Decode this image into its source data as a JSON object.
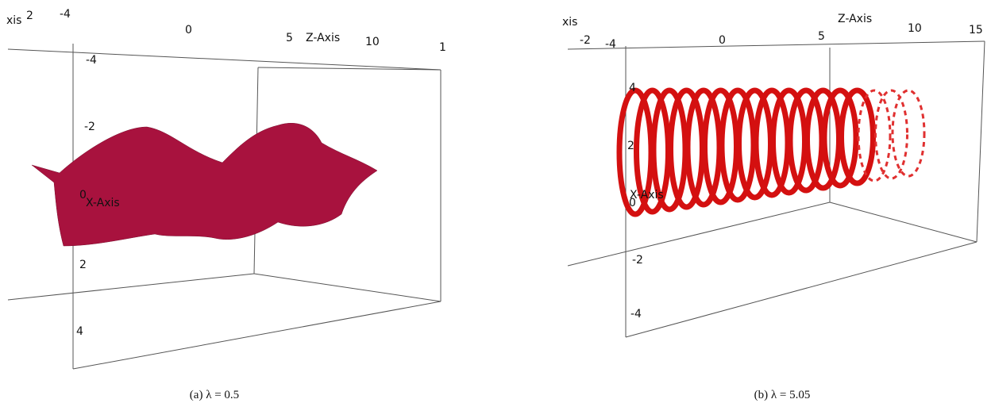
{
  "panels": [
    {
      "labels": [
        "xis",
        "2",
        "-4",
        "0",
        "5",
        "Z-Axis",
        "10",
        "1",
        "-4",
        "-2",
        "0",
        "X-Axis",
        "2",
        "4"
      ],
      "caption": "(a) λ = 0.5"
    },
    {
      "labels": [
        "xis",
        "-2",
        "-4",
        "0",
        "5",
        "Z-Axis",
        "10",
        "15",
        "4",
        "2",
        "X-Axis",
        "0",
        "-2",
        "-4"
      ],
      "caption": "(b) λ = 5.05"
    }
  ]
}
